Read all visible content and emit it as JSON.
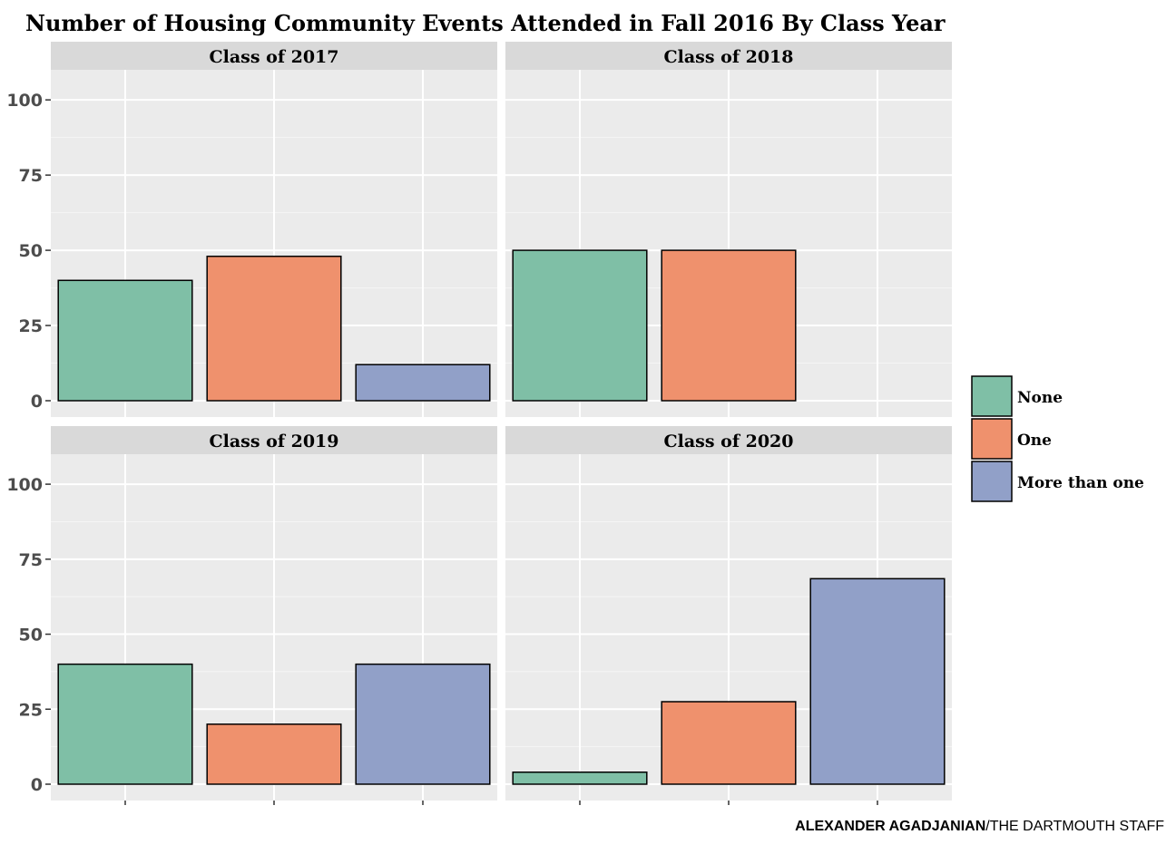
{
  "chart_data": {
    "type": "bar",
    "title": "Number of Housing Community Events Attended in Fall 2016 By Class Year",
    "xlabel": "",
    "ylabel": "",
    "ylim": [
      0,
      110
    ],
    "yticks": [
      0,
      25,
      50,
      75,
      100
    ],
    "grid": true,
    "legend_position": "right",
    "categories": [
      "None",
      "One",
      "More than one"
    ],
    "colors": [
      "#7fbfa6",
      "#ef916d",
      "#91a0c8"
    ],
    "facets": [
      {
        "label": "Class of 2017",
        "values": [
          40,
          48,
          12
        ]
      },
      {
        "label": "Class of 2018",
        "values": [
          50,
          50,
          0
        ]
      },
      {
        "label": "Class of 2019",
        "values": [
          40,
          20,
          40
        ]
      },
      {
        "label": "Class of 2020",
        "values": [
          4,
          27.5,
          68.5
        ]
      }
    ]
  },
  "credit": {
    "author": "ALEXANDER AGADJANIAN",
    "org": "/THE DARTMOUTH STAFF"
  }
}
